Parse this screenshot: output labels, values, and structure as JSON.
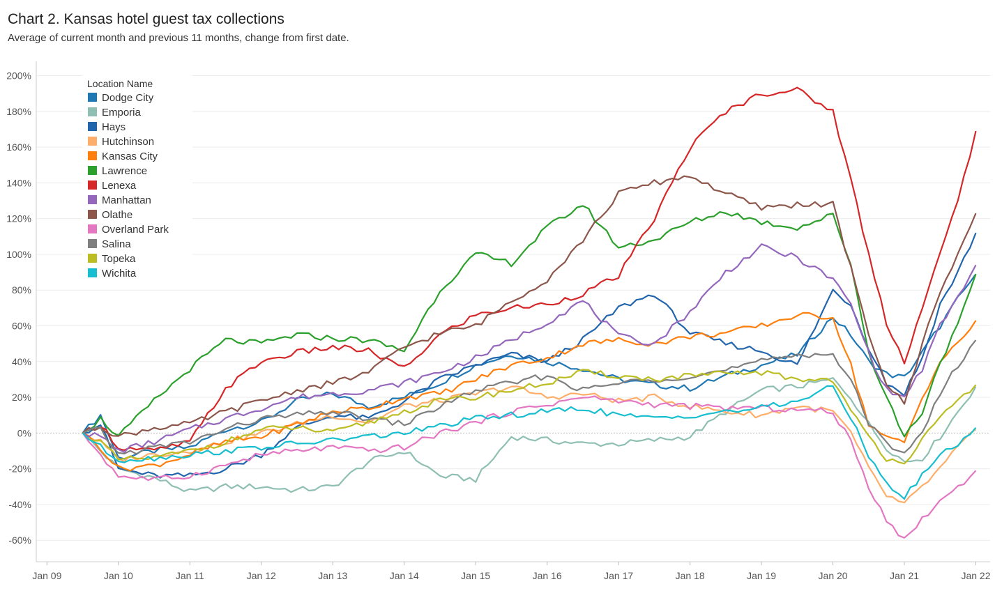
{
  "title": "Chart 2. Kansas hotel guest tax collections",
  "subtitle": "Average of current month and previous 11 months, change from first date.",
  "chart_data": {
    "type": "line",
    "title": "Chart 2. Kansas hotel guest tax collections",
    "subtitle": "Average of current month and previous 11 months, change from first date.",
    "xlabel": "",
    "ylabel": "",
    "x_ticks": [
      "Jan 09",
      "Jan 10",
      "Jan 11",
      "Jan 12",
      "Jan 13",
      "Jan 14",
      "Jan 15",
      "Jan 16",
      "Jan 17",
      "Jan 18",
      "Jan 19",
      "Jan 20",
      "Jan 21",
      "Jan 22"
    ],
    "y_ticks": [
      "200%",
      "180%",
      "160%",
      "140%",
      "120%",
      "100%",
      "80%",
      "60%",
      "40%",
      "20%",
      "0%",
      "-20%",
      "-40%",
      "-60%"
    ],
    "ylim": [
      -0.72,
      2.08
    ],
    "grid": true,
    "legend_title": "Location Name",
    "legend_position": "top-left",
    "x": [
      2009.5,
      2009.75,
      2010.0,
      2010.5,
      2011.0,
      2011.5,
      2012.0,
      2012.5,
      2013.0,
      2013.5,
      2014.0,
      2014.5,
      2015.0,
      2015.5,
      2016.0,
      2016.5,
      2017.0,
      2017.5,
      2018.0,
      2018.5,
      2019.0,
      2019.5,
      2020.0,
      2020.25,
      2020.5,
      2020.75,
      2021.0,
      2021.25,
      2021.5,
      2021.75,
      2022.0
    ],
    "series": [
      {
        "name": "Dodge City",
        "color": "#1f77b4",
        "values": [
          0,
          0.1,
          -0.14,
          -0.1,
          -0.08,
          0.02,
          0.06,
          0.18,
          0.22,
          0.15,
          0.2,
          0.28,
          0.38,
          0.44,
          0.4,
          0.36,
          0.3,
          0.27,
          0.25,
          0.32,
          0.38,
          0.44,
          0.65,
          0.55,
          0.4,
          0.33,
          0.31,
          0.45,
          0.6,
          0.75,
          0.89
        ]
      },
      {
        "name": "Emporia",
        "color": "#8fbfb2",
        "values": [
          0,
          -0.1,
          -0.2,
          -0.25,
          -0.33,
          -0.3,
          -0.3,
          -0.32,
          -0.3,
          -0.16,
          -0.1,
          -0.24,
          -0.26,
          -0.02,
          -0.04,
          -0.06,
          -0.06,
          -0.04,
          -0.02,
          0.12,
          0.24,
          0.26,
          0.3,
          0.2,
          0.05,
          -0.08,
          -0.16,
          -0.14,
          -0.02,
          0.12,
          0.26
        ]
      },
      {
        "name": "Hays",
        "color": "#2166ac",
        "values": [
          0,
          0.05,
          -0.2,
          -0.24,
          -0.24,
          -0.2,
          -0.12,
          0.03,
          0.1,
          0.08,
          0.18,
          0.3,
          0.38,
          0.44,
          0.4,
          0.52,
          0.7,
          0.78,
          0.56,
          0.5,
          0.46,
          0.38,
          0.8,
          0.72,
          0.48,
          0.28,
          0.22,
          0.42,
          0.72,
          0.9,
          1.12
        ]
      },
      {
        "name": "Hutchinson",
        "color": "#fdae6b",
        "values": [
          0,
          -0.05,
          -0.15,
          -0.12,
          -0.1,
          -0.05,
          0.0,
          0.05,
          0.1,
          0.06,
          0.15,
          0.18,
          0.22,
          0.26,
          0.2,
          0.22,
          0.18,
          0.2,
          0.15,
          0.12,
          0.1,
          0.15,
          0.12,
          0.0,
          -0.2,
          -0.35,
          -0.4,
          -0.3,
          -0.2,
          -0.08,
          0.02
        ]
      },
      {
        "name": "Kansas City",
        "color": "#ff7f0e",
        "values": [
          0,
          -0.08,
          -0.2,
          -0.18,
          -0.12,
          -0.05,
          -0.02,
          0.05,
          0.12,
          0.14,
          0.2,
          0.22,
          0.3,
          0.38,
          0.42,
          0.5,
          0.52,
          0.5,
          0.54,
          0.56,
          0.6,
          0.66,
          0.65,
          0.38,
          0.05,
          -0.03,
          -0.05,
          0.2,
          0.4,
          0.5,
          0.63
        ]
      },
      {
        "name": "Lawrence",
        "color": "#2ca02c",
        "values": [
          0,
          0.08,
          -0.02,
          0.18,
          0.36,
          0.52,
          0.5,
          0.55,
          0.53,
          0.52,
          0.46,
          0.8,
          1.0,
          0.95,
          1.15,
          1.28,
          1.04,
          1.08,
          1.18,
          1.24,
          1.18,
          1.15,
          1.22,
          0.95,
          0.45,
          0.2,
          -0.02,
          0.12,
          0.4,
          0.6,
          0.89
        ]
      },
      {
        "name": "Lenexa",
        "color": "#d62728",
        "values": [
          0,
          0.05,
          -0.08,
          -0.1,
          -0.05,
          0.25,
          0.4,
          0.45,
          0.48,
          0.46,
          0.36,
          0.55,
          0.66,
          0.7,
          0.72,
          0.78,
          0.88,
          1.2,
          1.6,
          1.8,
          1.9,
          1.92,
          1.8,
          1.42,
          1.0,
          0.62,
          0.4,
          0.7,
          1.0,
          1.3,
          1.69
        ]
      },
      {
        "name": "Manhattan",
        "color": "#9467bd",
        "values": [
          0,
          -0.02,
          -0.1,
          -0.05,
          0.02,
          0.08,
          0.14,
          0.2,
          0.22,
          0.24,
          0.28,
          0.34,
          0.42,
          0.52,
          0.62,
          0.74,
          0.54,
          0.5,
          0.68,
          0.9,
          1.04,
          0.98,
          0.86,
          0.72,
          0.45,
          0.24,
          0.2,
          0.36,
          0.6,
          0.76,
          0.94
        ]
      },
      {
        "name": "Olathe",
        "color": "#8c564b",
        "values": [
          0,
          0.04,
          -0.02,
          0.03,
          0.05,
          0.12,
          0.18,
          0.24,
          0.28,
          0.34,
          0.48,
          0.56,
          0.6,
          0.74,
          0.86,
          1.08,
          1.34,
          1.4,
          1.44,
          1.34,
          1.26,
          1.28,
          1.28,
          0.92,
          0.55,
          0.28,
          0.16,
          0.5,
          0.8,
          1.0,
          1.23
        ]
      },
      {
        "name": "Overland Park",
        "color": "#e377c2",
        "values": [
          0,
          -0.12,
          -0.24,
          -0.26,
          -0.24,
          -0.18,
          -0.12,
          -0.1,
          -0.08,
          -0.1,
          -0.08,
          0.0,
          0.06,
          0.12,
          0.16,
          0.2,
          0.18,
          0.16,
          0.15,
          0.14,
          0.14,
          0.13,
          0.12,
          -0.05,
          -0.3,
          -0.48,
          -0.6,
          -0.48,
          -0.38,
          -0.3,
          -0.21
        ]
      },
      {
        "name": "Salina",
        "color": "#7f7f7f",
        "values": [
          0,
          0.02,
          -0.12,
          -0.08,
          -0.05,
          0.02,
          0.08,
          0.1,
          0.12,
          0.08,
          0.05,
          0.15,
          0.24,
          0.28,
          0.32,
          0.24,
          0.28,
          0.3,
          0.32,
          0.35,
          0.4,
          0.44,
          0.44,
          0.3,
          0.05,
          -0.06,
          -0.1,
          0.0,
          0.22,
          0.38,
          0.52
        ]
      },
      {
        "name": "Topeka",
        "color": "#bcbd22",
        "values": [
          0,
          -0.05,
          -0.15,
          -0.14,
          -0.1,
          -0.05,
          0.02,
          0.03,
          0.0,
          0.06,
          0.12,
          0.18,
          0.2,
          0.24,
          0.28,
          0.34,
          0.32,
          0.3,
          0.32,
          0.33,
          0.34,
          0.3,
          0.3,
          0.12,
          -0.02,
          -0.14,
          -0.16,
          -0.04,
          0.08,
          0.18,
          0.27
        ]
      },
      {
        "name": "Wichita",
        "color": "#17becf",
        "values": [
          0,
          -0.08,
          -0.15,
          -0.14,
          -0.12,
          -0.1,
          -0.08,
          -0.06,
          -0.04,
          -0.02,
          0.0,
          0.04,
          0.08,
          0.1,
          0.12,
          0.14,
          0.1,
          0.08,
          0.1,
          0.12,
          0.14,
          0.18,
          0.26,
          0.08,
          -0.12,
          -0.28,
          -0.36,
          -0.24,
          -0.12,
          -0.06,
          0.03
        ]
      }
    ]
  }
}
